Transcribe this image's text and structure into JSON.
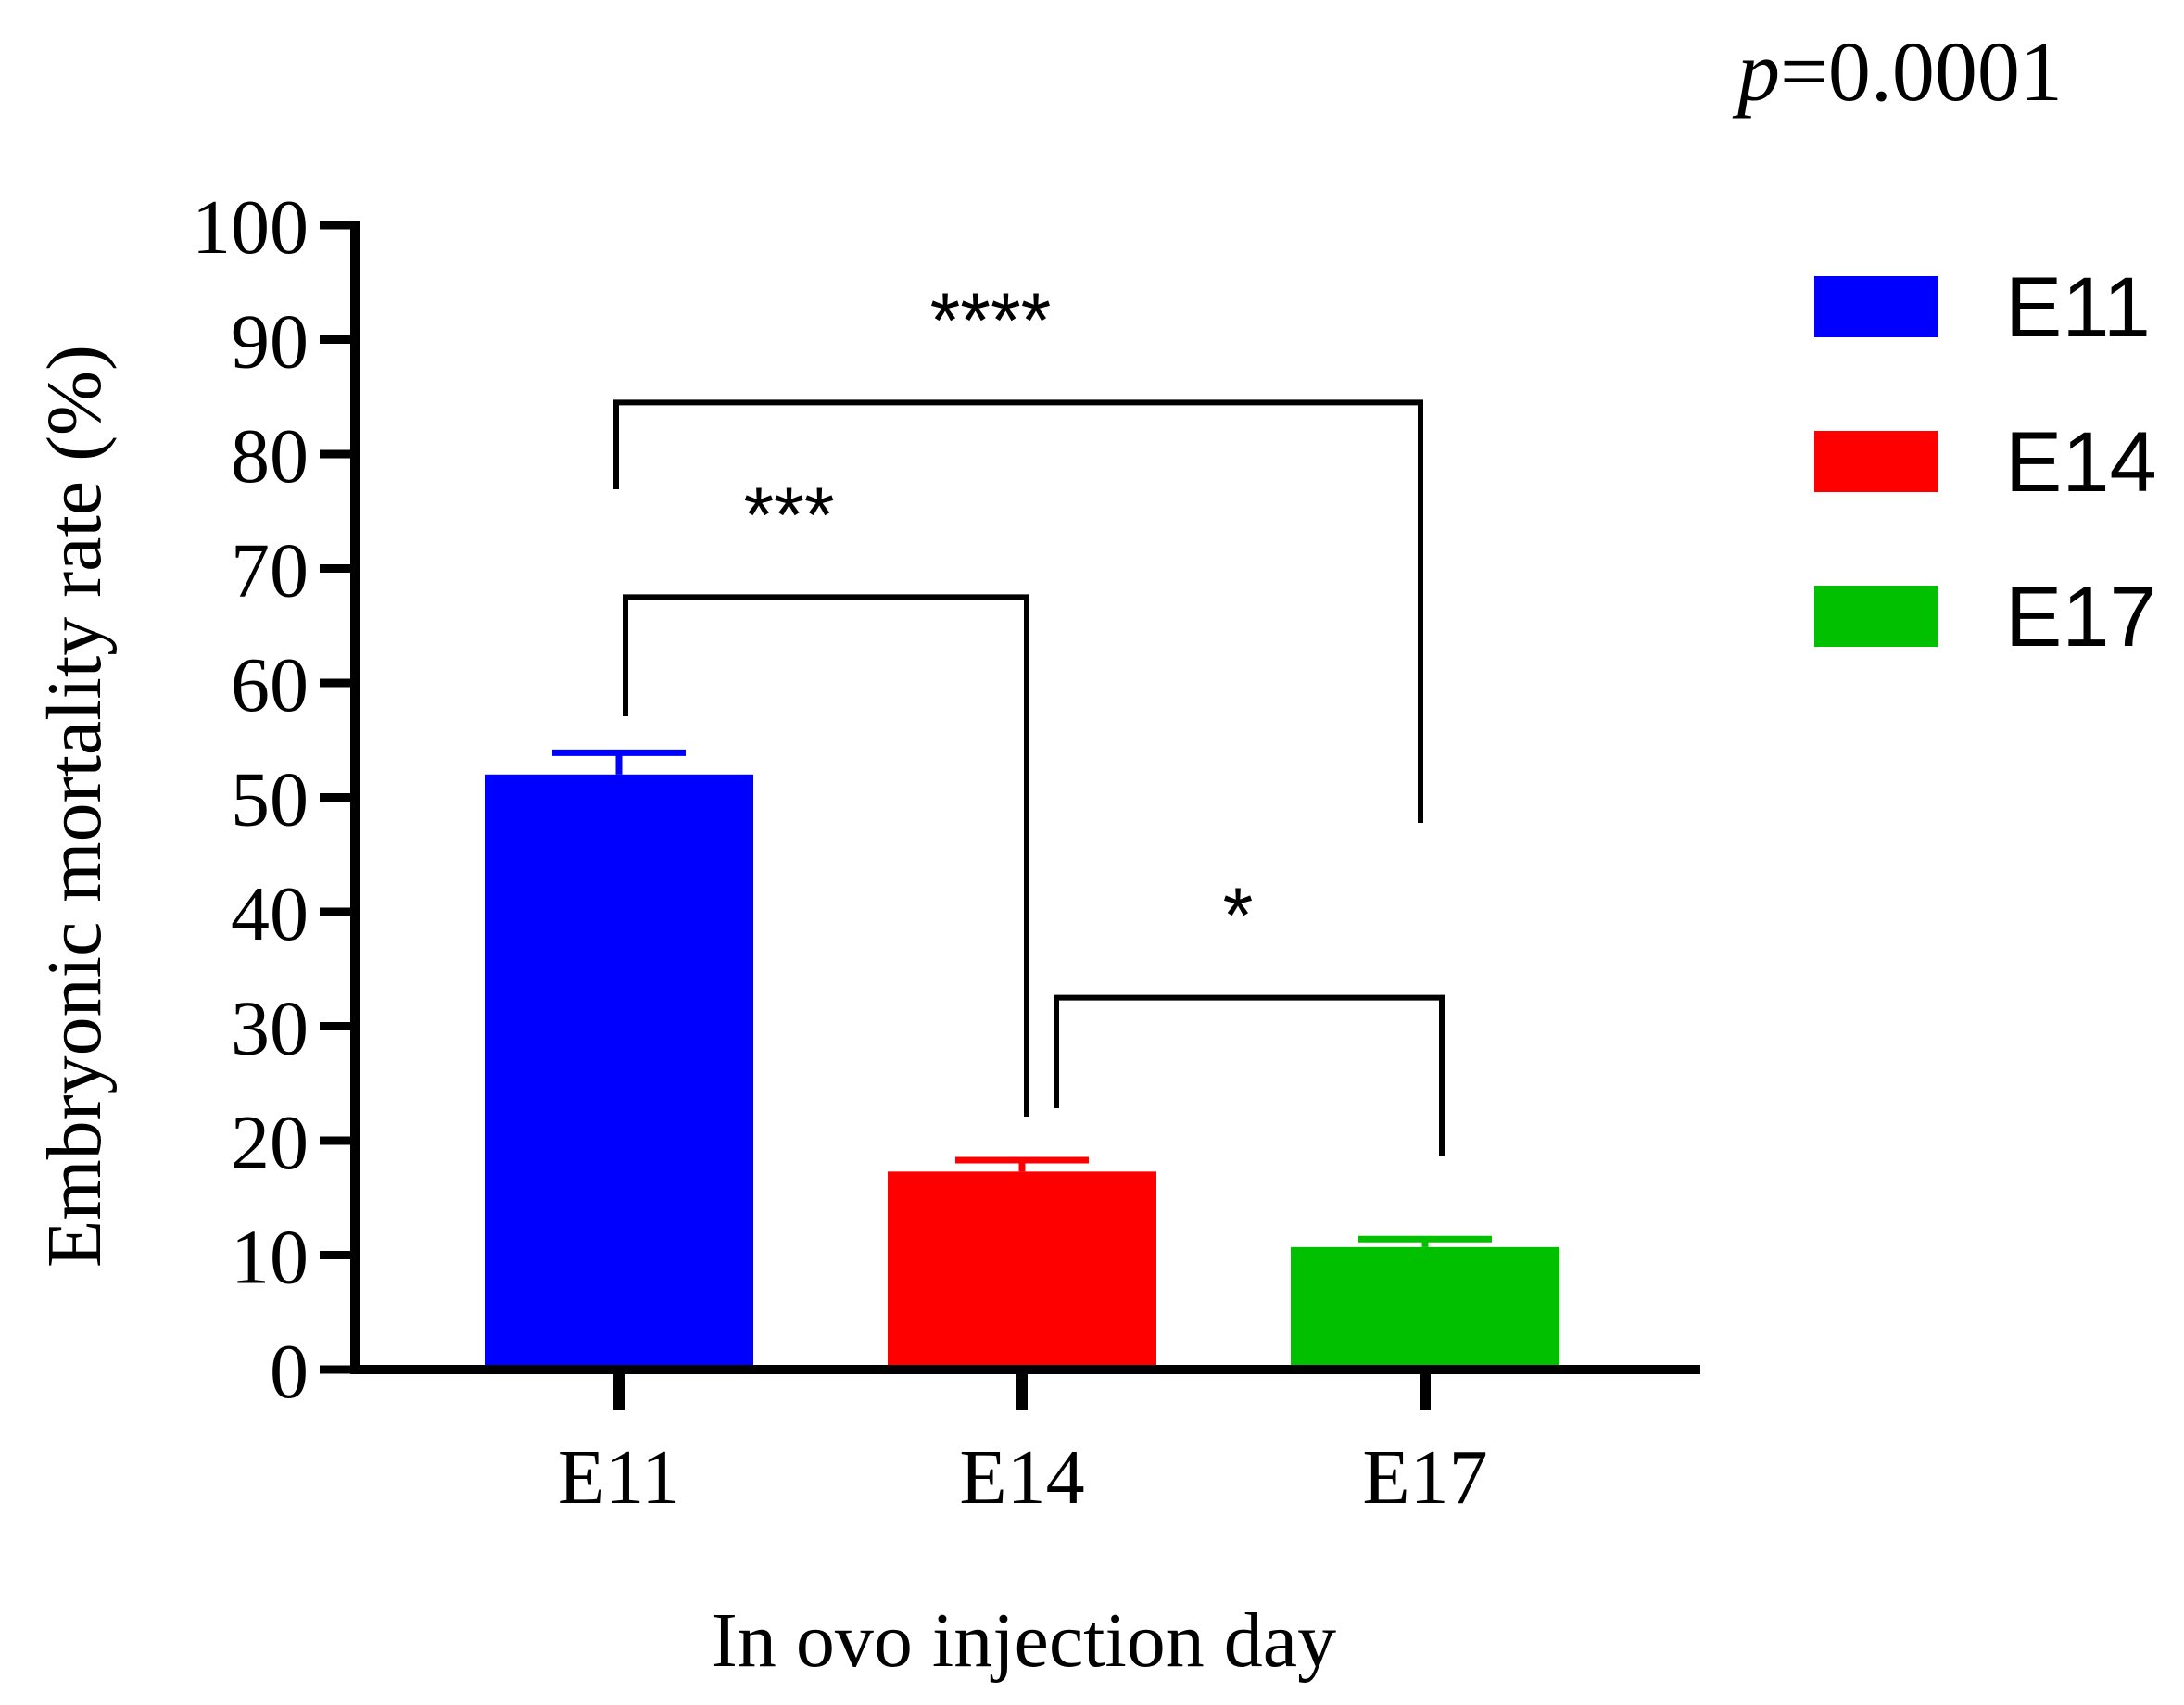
{
  "chart_data": {
    "type": "bar",
    "title": "",
    "pvalue_label": "p",
    "pvalue_value": "=0.0001",
    "xlabel": "In ovo injection day",
    "ylabel": "Embryonic mortality rate (%)",
    "ylim": [
      0,
      100
    ],
    "yticks": [
      0,
      10,
      20,
      30,
      40,
      50,
      60,
      70,
      80,
      90,
      100
    ],
    "categories": [
      "E11",
      "E14",
      "E17"
    ],
    "values": [
      52,
      17.3,
      10.7
    ],
    "errors": [
      1.9,
      1.0,
      0.7
    ],
    "colors": [
      "#0000ff",
      "#ff0000",
      "#00c000"
    ],
    "legend": {
      "position": "right",
      "entries": [
        {
          "label": "E11",
          "color": "#0000ff"
        },
        {
          "label": "E14",
          "color": "#ff0000"
        },
        {
          "label": "E17",
          "color": "#00c000"
        }
      ]
    },
    "significance": [
      {
        "from": "E11",
        "to": "E17",
        "label": "****",
        "level": 84.5
      },
      {
        "from": "E11",
        "to": "E14",
        "label": "***",
        "level": 67.5
      },
      {
        "from": "E14",
        "to": "E17",
        "label": "*",
        "level": 32.5
      }
    ]
  }
}
